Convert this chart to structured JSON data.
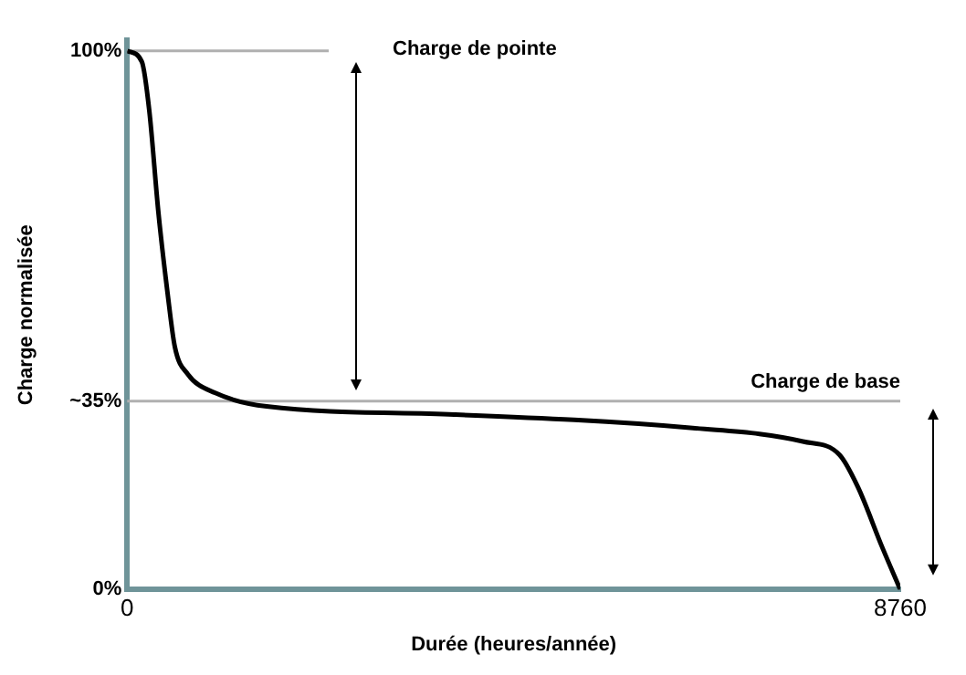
{
  "chart_data": {
    "type": "line",
    "xlabel": "Durée (heures/année)",
    "ylabel": "Charge normalisée",
    "x": [
      0,
      166,
      250,
      354,
      458,
      541,
      687,
      999,
      1581,
      3704,
      6409,
      7657,
      8073,
      8281,
      8552,
      8760
    ],
    "series": [
      {
        "color": "#000000",
        "values": [
          100,
          98,
          89,
          70,
          55,
          45,
          40,
          36.5,
          34,
          32.5,
          30,
          27.5,
          25,
          19,
          8,
          0
        ]
      }
    ],
    "xlim": [
      0,
      8760
    ],
    "xticks": [
      0,
      8760
    ],
    "ylim": [
      0,
      102
    ],
    "yticks": [
      {
        "value": 0,
        "label": "0%"
      },
      {
        "value": 35,
        "label": "~35%"
      },
      {
        "value": 100,
        "label": "100%"
      }
    ],
    "ref_lines": [
      {
        "axis": "y",
        "value": 100,
        "color": "#b0b0b0"
      },
      {
        "axis": "y",
        "value": 35,
        "label": "Charge de base",
        "color": "#b0b0b0"
      }
    ],
    "annotations": [
      "Charge de pointe"
    ],
    "grid": false,
    "legend": false,
    "marker": "none",
    "line_style": "solid"
  }
}
